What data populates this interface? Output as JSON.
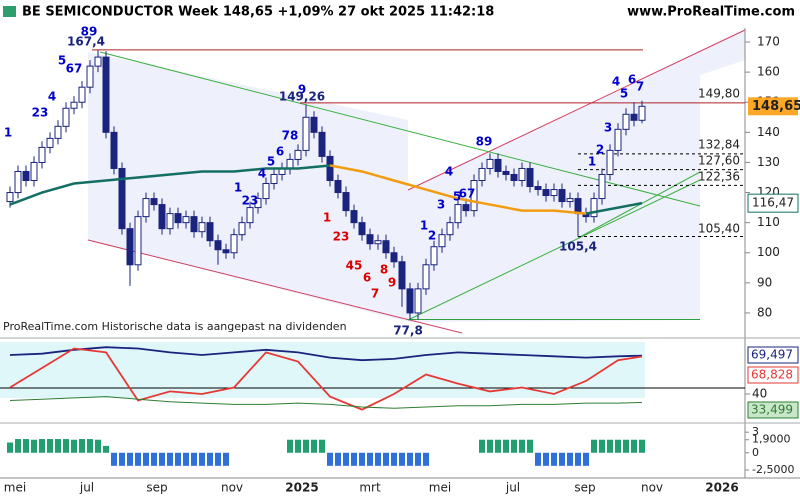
{
  "chart_data": {
    "type": "candlestick",
    "title": "BE SEMICONDUCTOR Week 148,65 +1,09% 27 okt 2025 11:42:18",
    "source": "www.ProRealTime.com",
    "note": "ProRealTime.com  Historische data is aangepast na dividenden",
    "up_color": "#ffffff",
    "down_color": "#1a237e",
    "ylim": [
      74,
      174
    ],
    "yticks": [
      80,
      90,
      100,
      110,
      120,
      130,
      140,
      150,
      160,
      170
    ],
    "candles": [
      [
        117,
        122,
        115,
        120
      ],
      [
        120,
        129,
        118,
        127
      ],
      [
        127,
        129,
        122,
        124
      ],
      [
        124,
        132,
        122,
        130
      ],
      [
        130,
        137,
        128,
        135
      ],
      [
        135,
        140,
        133,
        138
      ],
      [
        138,
        144,
        136,
        142
      ],
      [
        142,
        150,
        140,
        148
      ],
      [
        148,
        152,
        146,
        150
      ],
      [
        150,
        157,
        148,
        155
      ],
      [
        155,
        164,
        153,
        162
      ],
      [
        162,
        167.4,
        160,
        165
      ],
      [
        165,
        167,
        138,
        140
      ],
      [
        140,
        142,
        126,
        128
      ],
      [
        128,
        130,
        106,
        108
      ],
      [
        108,
        110,
        89,
        96
      ],
      [
        96,
        114,
        94,
        112
      ],
      [
        112,
        120,
        110,
        118
      ],
      [
        118,
        120,
        114,
        116
      ],
      [
        116,
        118,
        106,
        108
      ],
      [
        108,
        115,
        106,
        113
      ],
      [
        113,
        115,
        108,
        110
      ],
      [
        110,
        114,
        108,
        112
      ],
      [
        112,
        114,
        105,
        107
      ],
      [
        107,
        112,
        105,
        110
      ],
      [
        110,
        112,
        102,
        104
      ],
      [
        104,
        106,
        96,
        101
      ],
      [
        101,
        103,
        98,
        100
      ],
      [
        100,
        108,
        98,
        106
      ],
      [
        106,
        112,
        104,
        110
      ],
      [
        110,
        117,
        108,
        115
      ],
      [
        115,
        120,
        113,
        118
      ],
      [
        118,
        125,
        116,
        123
      ],
      [
        123,
        128,
        121,
        126
      ],
      [
        126,
        130,
        124,
        128
      ],
      [
        128,
        133,
        126,
        131
      ],
      [
        131,
        136,
        129,
        134
      ],
      [
        134,
        149.26,
        132,
        145
      ],
      [
        145,
        147,
        138,
        140
      ],
      [
        140,
        142,
        130,
        132
      ],
      [
        132,
        134,
        122,
        124
      ],
      [
        124,
        126,
        118,
        120
      ],
      [
        120,
        122,
        112,
        114
      ],
      [
        114,
        116,
        108,
        110
      ],
      [
        110,
        112,
        104,
        106
      ],
      [
        106,
        108,
        101,
        103
      ],
      [
        103,
        106,
        101,
        104
      ],
      [
        104,
        106,
        98,
        100
      ],
      [
        100,
        102,
        95,
        97
      ],
      [
        97,
        99,
        82,
        88
      ],
      [
        88,
        90,
        77.8,
        80
      ],
      [
        80,
        90,
        78,
        88
      ],
      [
        88,
        98,
        86,
        96
      ],
      [
        96,
        104,
        94,
        102
      ],
      [
        102,
        108,
        100,
        106
      ],
      [
        106,
        112,
        104,
        110
      ],
      [
        110,
        118,
        108,
        116
      ],
      [
        116,
        118,
        112,
        114
      ],
      [
        114,
        126,
        112,
        124
      ],
      [
        124,
        130,
        122,
        128
      ],
      [
        128,
        133,
        126,
        131
      ],
      [
        131,
        133,
        125,
        127
      ],
      [
        127,
        129,
        124,
        126
      ],
      [
        126,
        128,
        122,
        124
      ],
      [
        124,
        130,
        122,
        128
      ],
      [
        128,
        130,
        120,
        122
      ],
      [
        122,
        124,
        119,
        121
      ],
      [
        121,
        123,
        117,
        119
      ],
      [
        119,
        123,
        117,
        121
      ],
      [
        121,
        123,
        115,
        117
      ],
      [
        117,
        120,
        115,
        118
      ],
      [
        118,
        120,
        105.4,
        113
      ],
      [
        113,
        115,
        110,
        112
      ],
      [
        112,
        120,
        110,
        118
      ],
      [
        118,
        128,
        116,
        126
      ],
      [
        126,
        136,
        124,
        134
      ],
      [
        134,
        143,
        132,
        141
      ],
      [
        141,
        148,
        139,
        146
      ],
      [
        146,
        150,
        142,
        144
      ],
      [
        144,
        150.5,
        143,
        148.65
      ]
    ],
    "last_price": {
      "value": 148.65,
      "label": "148,65"
    },
    "ma": {
      "x": [
        0,
        4,
        8,
        12,
        16,
        20,
        24,
        28,
        32,
        36,
        40,
        44,
        48,
        52,
        56,
        60,
        64,
        68,
        72,
        76,
        79
      ],
      "series": [
        {
          "color": "#136f63",
          "values": [
            116,
            120,
            123,
            124,
            125,
            126,
            127,
            127,
            128,
            128,
            129,
            null,
            null,
            null,
            null,
            null,
            null,
            null,
            113,
            115,
            116.47
          ]
        },
        {
          "color": "#f39c12",
          "values": [
            null,
            null,
            null,
            null,
            null,
            null,
            null,
            null,
            null,
            null,
            129,
            127,
            124,
            121,
            118,
            116,
            114,
            114,
            113,
            null,
            null
          ]
        }
      ],
      "last": {
        "value": 116.47,
        "label": "116,47"
      }
    },
    "levels": [
      {
        "value": 167.4,
        "color": "#b22222",
        "style": "solid"
      },
      {
        "value": 149.8,
        "label": "149,80",
        "color": "#b22222",
        "style": "solid"
      },
      {
        "value": 132.84,
        "label": "132,84",
        "color": "#000000",
        "style": "dashed"
      },
      {
        "value": 127.6,
        "label": "127,60",
        "color": "#000000",
        "style": "dashed"
      },
      {
        "value": 122.36,
        "label": "122,36",
        "color": "#000000",
        "style": "dashed"
      },
      {
        "value": 105.4,
        "label": "105,40",
        "color": "#000000",
        "style": "dashed"
      },
      {
        "value": 77.8,
        "color": "#2e9e3e",
        "style": "solid"
      }
    ],
    "annotations": [
      {
        "text": "1",
        "color": "#0000cc"
      },
      {
        "text": "23",
        "color": "#0000cc"
      },
      {
        "text": "4",
        "color": "#0000cc"
      },
      {
        "text": "5",
        "color": "#0000cc"
      },
      {
        "text": "67",
        "color": "#0000cc"
      },
      {
        "text": "89",
        "color": "#0000cc"
      },
      {
        "text": "167,4",
        "color": "#1a237e"
      },
      {
        "text": "1",
        "color": "#0000cc"
      },
      {
        "text": "23",
        "color": "#0000cc"
      },
      {
        "text": "4",
        "color": "#0000cc"
      },
      {
        "text": "5",
        "color": "#0000cc"
      },
      {
        "text": "6",
        "color": "#0000cc"
      },
      {
        "text": "78",
        "color": "#0000cc"
      },
      {
        "text": "9",
        "color": "#0000cc"
      },
      {
        "text": "149,26",
        "color": "#1a237e"
      },
      {
        "text": "1",
        "color": "#dd0000"
      },
      {
        "text": "23",
        "color": "#dd0000"
      },
      {
        "text": "45",
        "color": "#dd0000"
      },
      {
        "text": "6",
        "color": "#dd0000"
      },
      {
        "text": "7",
        "color": "#dd0000"
      },
      {
        "text": "8",
        "color": "#dd0000"
      },
      {
        "text": "9",
        "color": "#dd0000"
      },
      {
        "text": "77,8",
        "color": "#1a237e"
      },
      {
        "text": "1",
        "color": "#0000cc"
      },
      {
        "text": "2",
        "color": "#0000cc"
      },
      {
        "text": "3",
        "color": "#0000cc"
      },
      {
        "text": "4",
        "color": "#0000cc"
      },
      {
        "text": "5",
        "color": "#0000cc"
      },
      {
        "text": "67",
        "color": "#0000cc"
      },
      {
        "text": "89",
        "color": "#0000cc"
      },
      {
        "text": "105,4",
        "color": "#1a237e"
      },
      {
        "text": "1",
        "color": "#0000cc"
      },
      {
        "text": "2",
        "color": "#0000cc"
      },
      {
        "text": "3",
        "color": "#0000cc"
      },
      {
        "text": "4",
        "color": "#0000cc"
      },
      {
        "text": "5",
        "color": "#0000cc"
      },
      {
        "text": "6",
        "color": "#0000cc"
      },
      {
        "text": "7",
        "color": "#0000cc"
      }
    ],
    "xlabels": [
      "mei",
      "jul",
      "sep",
      "nov",
      "2025",
      "mrt",
      "mei",
      "jul",
      "sep",
      "nov",
      "2026"
    ],
    "oscillator": {
      "x": [
        0,
        4,
        8,
        12,
        16,
        20,
        24,
        28,
        32,
        36,
        40,
        44,
        48,
        52,
        56,
        60,
        64,
        68,
        72,
        76,
        79
      ],
      "ylim": [
        20,
        80
      ],
      "yticks": [
        40
      ],
      "series": [
        {
          "color": "#1a237e",
          "values": [
            70,
            71,
            74,
            76,
            75,
            72,
            70,
            72,
            74,
            72,
            68,
            66,
            67,
            70,
            72,
            71,
            70,
            69,
            68,
            69,
            69.497
          ],
          "last_label": "69,497"
        },
        {
          "color": "#e53935",
          "values": [
            45,
            60,
            75,
            72,
            35,
            42,
            40,
            45,
            72,
            65,
            38,
            28,
            40,
            55,
            48,
            42,
            45,
            40,
            50,
            66,
            68.828
          ],
          "last_label": "68,828"
        },
        {
          "color": "#2e7d32",
          "values": [
            35,
            36,
            37,
            38,
            36,
            34,
            33,
            32,
            32,
            33,
            32,
            30,
            29,
            30,
            31,
            31,
            32,
            32,
            33,
            33,
            33.499
          ],
          "last_label": "33,499"
        }
      ]
    },
    "histogram": {
      "ylim": [
        -2.8,
        3.9
      ],
      "yticks": [
        3,
        {
          "value": 1.9,
          "label": "1,9000"
        },
        0,
        {
          "value": -2.5,
          "label": "-2,5000"
        }
      ],
      "up_color": "#20a070",
      "down_color": "#2f6fd8",
      "values": [
        1.5,
        2,
        2,
        1.9,
        2,
        2,
        2,
        2,
        1.9,
        2,
        2,
        1.9,
        1,
        -1.9,
        -1.9,
        -1.9,
        -1.9,
        -1.9,
        -1.9,
        -1.9,
        -1.9,
        -1.9,
        -1.9,
        -1.9,
        -1.9,
        -1.9,
        -1.9,
        -1.9,
        0,
        0,
        0,
        0,
        0,
        0,
        0,
        1.9,
        1.9,
        1.9,
        1.9,
        1.9,
        -1.9,
        -1.9,
        -1.9,
        -1.9,
        -1.9,
        -1.9,
        -1.9,
        -1.9,
        -1.9,
        -1.9,
        -1.9,
        -1.9,
        -1.9,
        0,
        0,
        0,
        0,
        0,
        0,
        1.9,
        1.9,
        1.9,
        1.9,
        1.9,
        1.9,
        1.9,
        -1.9,
        -1.9,
        -1.9,
        -1.9,
        -1.9,
        -1.9,
        -1.9,
        1.9,
        1.9,
        1.9,
        1.9,
        1.9,
        1.9,
        1.9
      ]
    }
  }
}
